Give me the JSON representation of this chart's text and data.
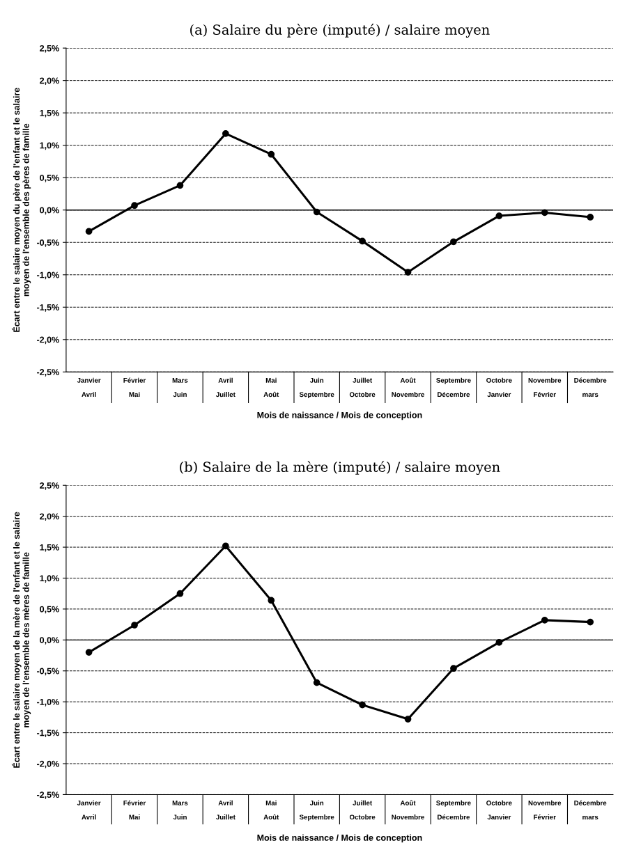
{
  "chart_data": [
    {
      "type": "line",
      "title": "(a) Salaire du père (imputé) / salaire moyen",
      "xlabel": "Mois de naissance / Mois de conception",
      "ylabel": "Écart entre le salaire moyen du père de l'enfant et le salaire\nmoyen de l'ensemble des pères de famille",
      "categories": [
        "Janvier\nAvril",
        "Février\nMai",
        "Mars\nJuin",
        "Avril\nJuillet",
        "Mai\nAoût",
        "Juin\nSeptembre",
        "Juillet\nOctobre",
        "Août\nNovembre",
        "Septembre\nDécembre",
        "Octobre\nJanvier",
        "Novembre\nFévrier",
        "Décembre\nmars"
      ],
      "series": [
        {
          "color": "#000000",
          "values": [
            -0.33,
            0.07,
            0.38,
            1.18,
            0.86,
            -0.03,
            -0.48,
            -0.96,
            -0.49,
            -0.09,
            -0.04,
            -0.11
          ]
        }
      ],
      "ylim": [
        -2.5,
        2.5
      ],
      "yticks": [
        {
          "value": -2.5,
          "label": "-2,5%"
        },
        {
          "value": -2.0,
          "label": "-2,0%"
        },
        {
          "value": -1.5,
          "label": "-1,5%"
        },
        {
          "value": -1.0,
          "label": "-1,0%"
        },
        {
          "value": -0.5,
          "label": "-0,5%"
        },
        {
          "value": 0,
          "label": "0,0%"
        },
        {
          "value": 0.5,
          "label": "0,5%"
        },
        {
          "value": 1.0,
          "label": "1,0%"
        },
        {
          "value": 1.5,
          "label": "1,5%"
        },
        {
          "value": 2.0,
          "label": "2,0%"
        },
        {
          "value": 2.5,
          "label": "2,5%"
        }
      ],
      "ref_lines": [
        {
          "axis": "y",
          "value": 0,
          "color": "#000000",
          "line_style": "solid"
        }
      ],
      "grid": "y",
      "marker": "circle",
      "line_style": "solid",
      "legend": false
    },
    {
      "type": "line",
      "title": "(b) Salaire de la mère (imputé) / salaire moyen",
      "xlabel": "Mois de naissance / Mois de conception",
      "ylabel": "Écart entre le salaire moyen de la mère de l'enfant et le salaire\nmoyen de l'ensemble des mères de famille",
      "categories": [
        "Janvier\nAvril",
        "Février\nMai",
        "Mars\nJuin",
        "Avril\nJuillet",
        "Mai\nAoût",
        "Juin\nSeptembre",
        "Juillet\nOctobre",
        "Août\nNovembre",
        "Septembre\nDécembre",
        "Octobre\nJanvier",
        "Novembre\nFévrier",
        "Décembre\nmars"
      ],
      "series": [
        {
          "color": "#000000",
          "values": [
            -0.2,
            0.24,
            0.75,
            1.52,
            0.64,
            -0.69,
            -1.05,
            -1.28,
            -0.46,
            -0.04,
            0.32,
            0.29
          ]
        }
      ],
      "ylim": [
        -2.5,
        2.5
      ],
      "yticks": [
        {
          "value": -2.5,
          "label": "-2,5%"
        },
        {
          "value": -2.0,
          "label": "-2,0%"
        },
        {
          "value": -1.5,
          "label": "-1,5%"
        },
        {
          "value": -1.0,
          "label": "-1,0%"
        },
        {
          "value": -0.5,
          "label": "-0,5%"
        },
        {
          "value": 0,
          "label": "0,0%"
        },
        {
          "value": 0.5,
          "label": "0,5%"
        },
        {
          "value": 1.0,
          "label": "1,0%"
        },
        {
          "value": 1.5,
          "label": "1,5%"
        },
        {
          "value": 2.0,
          "label": "2,0%"
        },
        {
          "value": 2.5,
          "label": "2,5%"
        }
      ],
      "ref_lines": [
        {
          "axis": "y",
          "value": 0,
          "color": "#000000",
          "line_style": "solid"
        }
      ],
      "grid": "y",
      "marker": "circle",
      "line_style": "solid",
      "legend": false
    }
  ]
}
